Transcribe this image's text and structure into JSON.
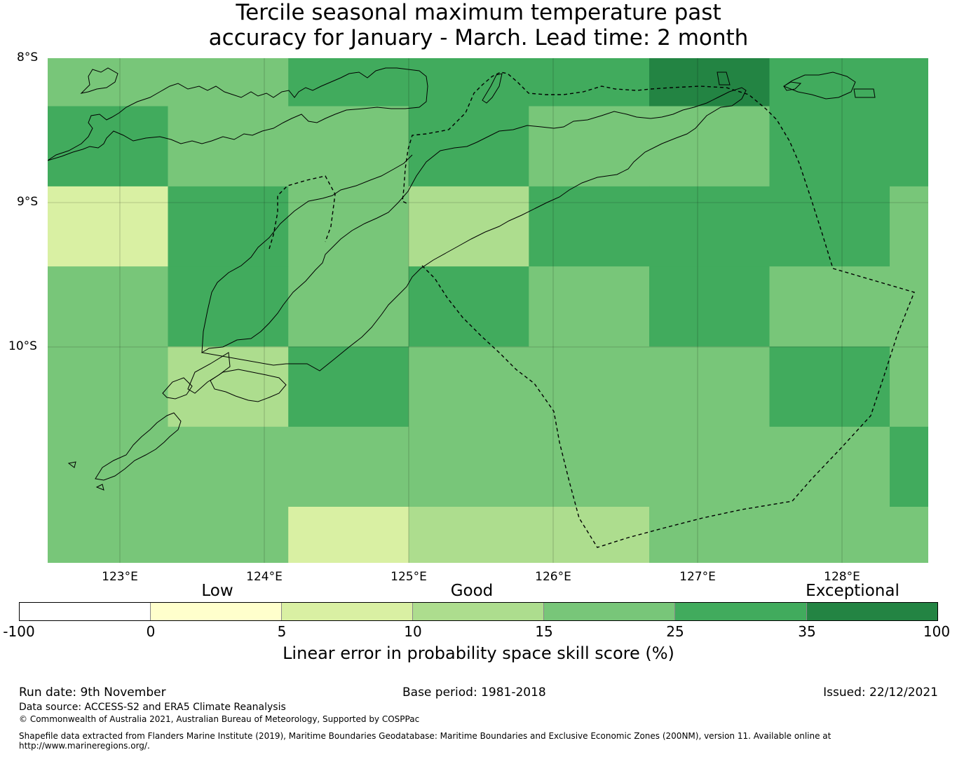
{
  "title": {
    "line1": "Tercile seasonal maximum temperature past",
    "line2": "accuracy for January - March. Lead time: 2 month"
  },
  "map": {
    "lat_labels": [
      "8°S",
      "9°S",
      "10°S"
    ],
    "lon_labels": [
      "123°E",
      "124°E",
      "125°E",
      "126°E",
      "127°E",
      "128°E"
    ],
    "extent": {
      "lon_min": 122.5,
      "lon_max": 128.6,
      "lat_top": -8.0,
      "lat_bottom": -11.5
    },
    "grid": {
      "lon_edges": [
        122.5,
        123.333,
        124.167,
        125.0,
        125.833,
        126.667,
        127.5,
        128.333,
        128.6
      ],
      "lat_edges": [
        -8.0,
        -8.333,
        -8.889,
        -9.444,
        -10.0,
        -10.556,
        -11.111,
        -11.5
      ],
      "level_colors": {
        "low": "#d9f0a3",
        "good_lo": "#addd8e",
        "good_mid": "#78c679",
        "good_hi": "#41ab5d",
        "exceptional": "#238443"
      },
      "rows": [
        [
          "good_mid",
          "good_mid",
          "good_hi",
          "good_hi",
          "good_hi",
          "exceptional",
          "good_hi",
          "good_hi"
        ],
        [
          "good_hi",
          "good_mid",
          "good_mid",
          "good_hi",
          "good_mid",
          "good_mid",
          "good_hi",
          "good_hi"
        ],
        [
          "low",
          "good_hi",
          "good_mid",
          "good_lo",
          "good_hi",
          "good_hi",
          "good_hi",
          "good_mid"
        ],
        [
          "good_mid",
          "good_hi",
          "good_mid",
          "good_hi",
          "good_mid",
          "good_hi",
          "good_mid",
          "good_mid"
        ],
        [
          "good_mid",
          "good_lo",
          "good_hi",
          "good_mid",
          "good_mid",
          "good_mid",
          "good_hi",
          "good_mid"
        ],
        [
          "good_mid",
          "good_mid",
          "good_mid",
          "good_mid",
          "good_mid",
          "good_mid",
          "good_mid",
          "good_hi"
        ],
        [
          "good_mid",
          "good_mid",
          "low",
          "good_lo",
          "good_lo",
          "good_mid",
          "good_mid",
          "good_mid"
        ]
      ]
    }
  },
  "colorbar": {
    "band_labels": [
      "Low",
      "Good",
      "Exceptional"
    ],
    "ticks": [
      "-100",
      "0",
      "5",
      "10",
      "15",
      "25",
      "35",
      "100"
    ],
    "colors": [
      "#ffffff",
      "#ffffcc",
      "#d9f0a3",
      "#addd8e",
      "#78c679",
      "#41ab5d",
      "#238443"
    ],
    "title": "Linear error in probability space skill score (%)"
  },
  "footer": {
    "run_date": "Run date: 9th November",
    "base_period": "Base period: 1981-2018",
    "issued": "Issued: 22/12/2021",
    "data_source": "Data source: ACCESS-S2 and ERA5 Climate Reanalysis",
    "copyright": "© Commonwealth of Australia 2021, Australian Bureau of Meteorology, Supported by COSPPac",
    "shapefile_line1": "Shapefile data extracted from Flanders Marine Institute (2019), Maritime Boundaries Geodatabase: Maritime Boundaries and Exclusive Economic Zones (200NM), version 11. Available online at",
    "shapefile_line2": "http://www.marineregions.org/."
  }
}
